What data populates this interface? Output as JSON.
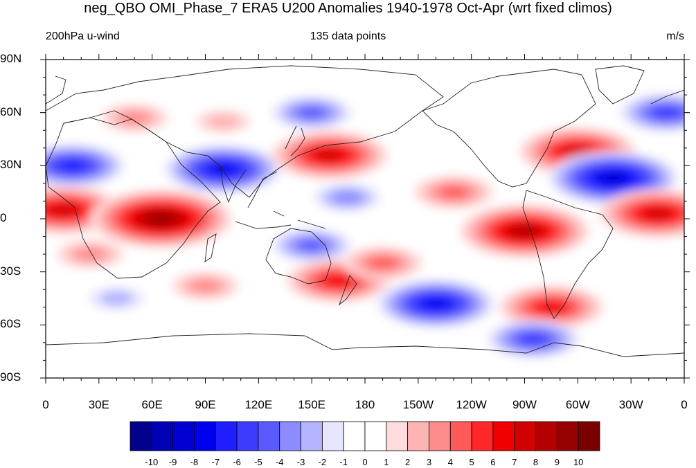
{
  "title": "neg_QBO OMI_Phase_7 ERA5 U200 Anomalies 1940-1978 Oct-Apr (wrt fixed climos)",
  "subtitle_left": "200hPa u-wind",
  "subtitle_center": "135 data points",
  "subtitle_right": "m/s",
  "lat_labels": [
    "90N",
    "60N",
    "30N",
    "0",
    "30S",
    "60S",
    "90S"
  ],
  "lon_labels": [
    "0",
    "30E",
    "60E",
    "90E",
    "120E",
    "150E",
    "180",
    "150W",
    "120W",
    "90W",
    "60W",
    "30W",
    "0"
  ],
  "colorbar": {
    "labels": [
      "-10",
      "-9",
      "-8",
      "-7",
      "-6",
      "-5",
      "-4",
      "-3",
      "-2",
      "-1",
      "0",
      "1",
      "2",
      "3",
      "4",
      "5",
      "6",
      "7",
      "8",
      "9",
      "10"
    ],
    "colors": [
      "#00008c",
      "#0000b4",
      "#0000d2",
      "#0000f0",
      "#1e1eff",
      "#3c3cff",
      "#5a5aff",
      "#8c8cff",
      "#b4b4ff",
      "#e6e6ff",
      "#ffffff",
      "#ffffff",
      "#ffdcdc",
      "#ffb4b4",
      "#ff8c8c",
      "#ff5a5a",
      "#ff2828",
      "#f00000",
      "#d20000",
      "#b40000",
      "#960000",
      "#780000"
    ]
  },
  "chart_data": {
    "type": "heatmap",
    "field": "200hPa u-wind anomaly",
    "units": "m/s",
    "lon_range": [
      0,
      360
    ],
    "lat_range": [
      -90,
      90
    ],
    "levels": [
      -10,
      -9,
      -8,
      -7,
      -6,
      -5,
      -4,
      -3,
      -2,
      -1,
      0,
      1,
      2,
      3,
      4,
      5,
      6,
      7,
      8,
      9,
      10
    ],
    "anomaly_centers": [
      {
        "lon": 10,
        "lat": 5,
        "value": 7
      },
      {
        "lon": 65,
        "lat": 0,
        "value": 9
      },
      {
        "lon": 25,
        "lat": -20,
        "value": 3
      },
      {
        "lon": 15,
        "lat": 30,
        "value": -6
      },
      {
        "lon": 100,
        "lat": 28,
        "value": -7
      },
      {
        "lon": 160,
        "lat": 36,
        "value": 7
      },
      {
        "lon": 150,
        "lat": 60,
        "value": -4
      },
      {
        "lon": 50,
        "lat": 57,
        "value": 3
      },
      {
        "lon": 100,
        "lat": 55,
        "value": 2
      },
      {
        "lon": 350,
        "lat": 60,
        "value": -5
      },
      {
        "lon": 300,
        "lat": 38,
        "value": 7
      },
      {
        "lon": 320,
        "lat": 23,
        "value": -8
      },
      {
        "lon": 270,
        "lat": -7,
        "value": 8
      },
      {
        "lon": 345,
        "lat": 3,
        "value": 7
      },
      {
        "lon": 170,
        "lat": 12,
        "value": -3
      },
      {
        "lon": 150,
        "lat": -15,
        "value": -4
      },
      {
        "lon": 165,
        "lat": -35,
        "value": 6
      },
      {
        "lon": 190,
        "lat": -25,
        "value": 4
      },
      {
        "lon": 220,
        "lat": -48,
        "value": -7
      },
      {
        "lon": 285,
        "lat": -50,
        "value": 6
      },
      {
        "lon": 275,
        "lat": -68,
        "value": -5
      },
      {
        "lon": 90,
        "lat": -38,
        "value": 3
      },
      {
        "lon": 230,
        "lat": 15,
        "value": 4
      },
      {
        "lon": 40,
        "lat": -45,
        "value": -2
      }
    ]
  }
}
